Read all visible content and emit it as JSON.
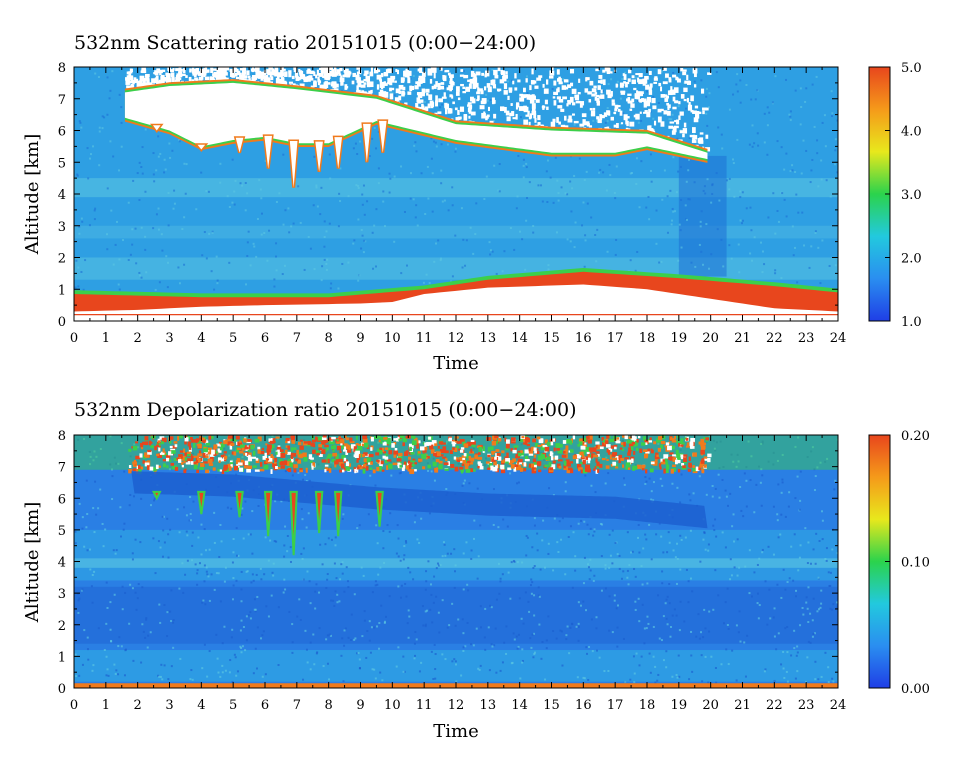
{
  "colorbar_colors": [
    "#1f3ee6",
    "#2a8ef0",
    "#22c9de",
    "#2bd34c",
    "#e8e81c",
    "#f59a1a",
    "#e8461d"
  ],
  "curtain_colors": {
    "background": "#2e9fe3",
    "light": "#5cc7e2",
    "dark": "#1d6fd6",
    "cloud": "#ffffff",
    "edge_green": "#3ccf4a",
    "edge_orange": "#f07a1c",
    "red": "#e8461d",
    "depol_low": "#2a7fe4",
    "depol_dark": "#1c5fd0"
  },
  "chart_data": [
    {
      "type": "heatmap",
      "title": "532nm Scattering ratio  20151015 (0:00−24:00)",
      "xlabel": "Time",
      "ylabel": "Altitude [km]",
      "xlim": [
        0,
        24
      ],
      "ylim": [
        0,
        8
      ],
      "x_ticks": [
        "0",
        "1",
        "2",
        "3",
        "4",
        "5",
        "6",
        "7",
        "8",
        "9",
        "10",
        "11",
        "12",
        "13",
        "14",
        "15",
        "16",
        "17",
        "18",
        "19",
        "20",
        "21",
        "22",
        "23",
        "24"
      ],
      "y_ticks": [
        "0",
        "1",
        "2",
        "3",
        "4",
        "5",
        "6",
        "7",
        "8"
      ],
      "colorbar": {
        "min": 1.0,
        "max": 5.0,
        "ticks": [
          "1.0",
          "2.0",
          "3.0",
          "4.0",
          "5.0"
        ]
      },
      "features": {
        "cloud_layer": {
          "time_start": 1.6,
          "time_end": 19.9,
          "top_km": [
            [
              1.6,
              7.2
            ],
            [
              3.0,
              7.4
            ],
            [
              5.0,
              7.5
            ],
            [
              7.0,
              7.3
            ],
            [
              9.5,
              7.0
            ],
            [
              12.0,
              6.2
            ],
            [
              15.0,
              6.0
            ],
            [
              18.0,
              5.9
            ],
            [
              19.9,
              5.3
            ]
          ],
          "base_km": [
            [
              1.6,
              6.4
            ],
            [
              3.0,
              6.0
            ],
            [
              4.0,
              5.5
            ],
            [
              5.0,
              5.7
            ],
            [
              6.0,
              5.8
            ],
            [
              7.0,
              5.6
            ],
            [
              8.0,
              5.6
            ],
            [
              9.5,
              6.3
            ],
            [
              12.0,
              5.7
            ],
            [
              15.0,
              5.3
            ],
            [
              17.0,
              5.3
            ],
            [
              18.0,
              5.5
            ],
            [
              19.9,
              5.1
            ]
          ],
          "fall_streaks": [
            [
              2.6,
              6.0
            ],
            [
              4.0,
              5.4
            ],
            [
              5.2,
              5.3
            ],
            [
              6.1,
              4.8
            ],
            [
              6.9,
              4.2
            ],
            [
              7.7,
              4.7
            ],
            [
              8.3,
              4.8
            ],
            [
              9.2,
              5.0
            ],
            [
              9.7,
              5.3
            ]
          ]
        },
        "boundary_layer_top_km": [
          [
            0,
            0.85
          ],
          [
            4,
            0.75
          ],
          [
            8,
            0.75
          ],
          [
            11,
            1.0
          ],
          [
            13,
            1.3
          ],
          [
            16,
            1.55
          ],
          [
            19,
            1.35
          ],
          [
            22,
            1.1
          ],
          [
            24,
            0.9
          ]
        ]
      }
    },
    {
      "type": "heatmap",
      "title": "532nm Depolarization ratio  20151015 (0:00−24:00)",
      "xlabel": "Time",
      "ylabel": "Altitude [km]",
      "xlim": [
        0,
        24
      ],
      "ylim": [
        0,
        8
      ],
      "x_ticks": [
        "0",
        "1",
        "2",
        "3",
        "4",
        "5",
        "6",
        "7",
        "8",
        "9",
        "10",
        "11",
        "12",
        "13",
        "14",
        "15",
        "16",
        "17",
        "18",
        "19",
        "20",
        "21",
        "22",
        "23",
        "24"
      ],
      "y_ticks": [
        "0",
        "1",
        "2",
        "3",
        "4",
        "5",
        "6",
        "7",
        "8"
      ],
      "colorbar": {
        "min": 0.0,
        "max": 0.2,
        "ticks": [
          "0.00",
          "0.10",
          "0.20"
        ]
      },
      "features": {
        "upper_noise_band_km": [
          7.0,
          8.0
        ],
        "ice_cloud_band_km": [
          [
            2.0,
            6.5
          ],
          [
            5.0,
            6.4
          ],
          [
            9.5,
            6.0
          ],
          [
            13.0,
            5.8
          ],
          [
            17.0,
            5.7
          ],
          [
            19.9,
            5.4
          ]
        ],
        "surface_layer_km": [
          0.0,
          0.15
        ]
      }
    }
  ]
}
